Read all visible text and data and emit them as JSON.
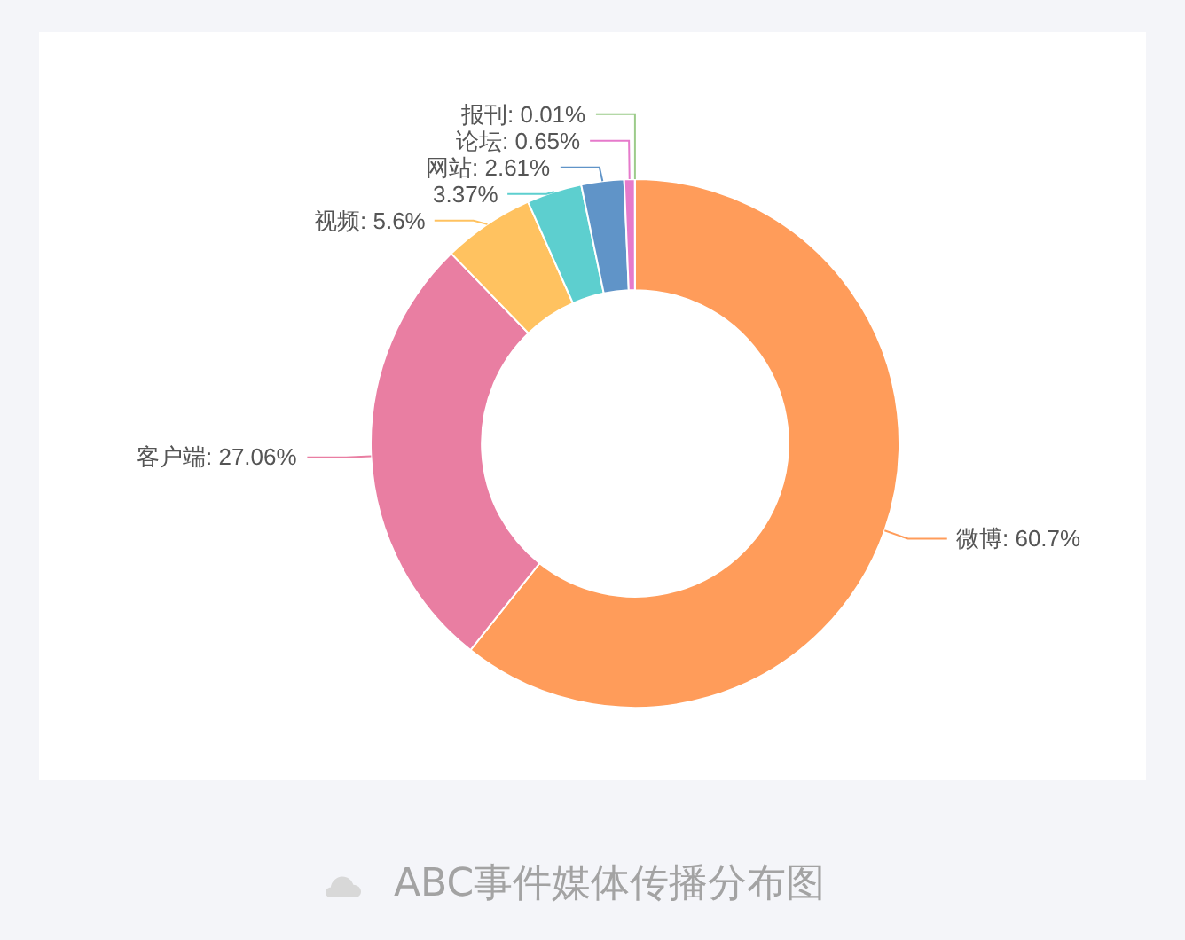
{
  "chart_data": {
    "type": "donut",
    "categories": [
      "微博",
      "客户端",
      "视频",
      null,
      "网站",
      "论坛",
      "报刊"
    ],
    "values": [
      60.7,
      27.06,
      5.6,
      3.37,
      2.61,
      0.65,
      0.01
    ],
    "value_labels": [
      "60.7%",
      "27.06%",
      "5.6%",
      "3.37%",
      "2.61%",
      "0.65%",
      "0.01%"
    ],
    "colors": [
      "#ff9c5a",
      "#e97ea2",
      "#ffc260",
      "#5dcfcf",
      "#6094c8",
      "#e67acb",
      "#9ccb8a"
    ],
    "annotations": [
      "ABC事件媒体传播分布图"
    ]
  }
}
